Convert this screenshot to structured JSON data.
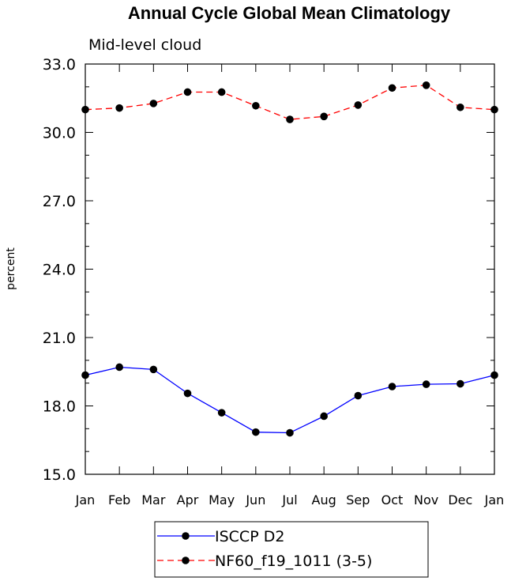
{
  "chart_data": {
    "type": "line",
    "title": "Annual Cycle Global Mean Climatology",
    "subtitle": "Mid-level cloud",
    "xlabel": "",
    "ylabel": "percent",
    "ylim": [
      15.0,
      33.0
    ],
    "yticks": [
      "15.0",
      "18.0",
      "21.0",
      "24.0",
      "27.0",
      "30.0",
      "33.0"
    ],
    "categories": [
      "Jan",
      "Feb",
      "Mar",
      "Apr",
      "May",
      "Jun",
      "Jul",
      "Aug",
      "Sep",
      "Oct",
      "Nov",
      "Dec",
      "Jan"
    ],
    "grid": false,
    "legend_position": "bottom-center",
    "series": [
      {
        "name": "ISCCP D2",
        "color": "#0000ff",
        "line_style": "solid",
        "marker": "filled-circle",
        "values": [
          19.35,
          19.7,
          19.6,
          18.55,
          17.7,
          16.85,
          16.82,
          17.55,
          18.45,
          18.85,
          18.95,
          18.97,
          19.35
        ]
      },
      {
        "name": "NF60_f19_1011 (3-5)",
        "color": "#ff0000",
        "line_style": "dashed",
        "marker": "filled-circle",
        "values": [
          31.0,
          31.07,
          31.27,
          31.77,
          31.77,
          31.17,
          30.57,
          30.7,
          31.2,
          31.95,
          32.07,
          31.1,
          31.0
        ]
      }
    ]
  }
}
